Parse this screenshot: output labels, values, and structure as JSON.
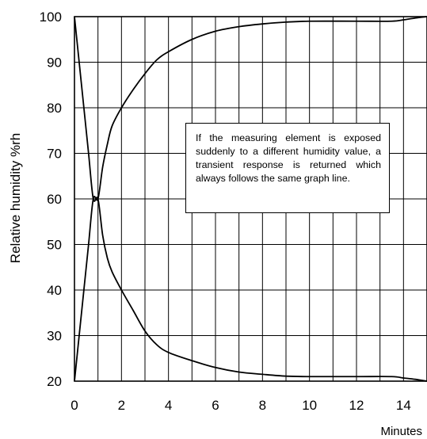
{
  "chart_data": {
    "type": "line",
    "title": "",
    "xlabel": "Minutes",
    "ylabel": "Relative humidity %rh",
    "xlim": [
      0,
      15
    ],
    "ylim": [
      20,
      100
    ],
    "grid": true,
    "x_ticks": [
      0,
      2,
      4,
      6,
      8,
      10,
      12,
      14
    ],
    "y_ticks": [
      20,
      30,
      40,
      50,
      60,
      70,
      80,
      90,
      100
    ],
    "annotation": "If the measuring element is exposed suddenly to a different humidity value, a transient response is returned which always follows the same graph line.",
    "series": [
      {
        "name": "",
        "x": [
          0,
          0.2,
          0.4,
          0.6,
          0.8,
          1.0,
          1.2,
          1.4,
          1.6,
          2.0,
          2.5,
          3.0,
          3.5,
          4.0,
          5.0,
          6.0,
          7.0,
          8.0,
          9.0,
          10.0,
          12.0,
          13.5,
          14.0,
          14.5,
          15.0
        ],
        "y": [
          20,
          30,
          40,
          50,
          60,
          60,
          67,
          72,
          76,
          80,
          84,
          87.5,
          90.5,
          92.3,
          95,
          96.8,
          97.8,
          98.4,
          98.8,
          99,
          99,
          99,
          99.3,
          99.7,
          100
        ]
      },
      {
        "name": "",
        "x": [
          0,
          0.2,
          0.4,
          0.6,
          0.8,
          1.0,
          1.2,
          1.4,
          1.6,
          2.0,
          2.5,
          3.0,
          3.5,
          4.0,
          5.0,
          6.0,
          7.0,
          8.0,
          9.0,
          10.0,
          12.0,
          13.5,
          14.0,
          14.5,
          15.0
        ],
        "y": [
          100,
          90,
          80,
          70,
          60,
          60,
          52,
          47,
          44,
          40,
          35.5,
          31,
          28,
          26.3,
          24.5,
          23,
          22,
          21.5,
          21.1,
          21,
          21,
          21,
          20.7,
          20.4,
          20
        ]
      }
    ]
  }
}
